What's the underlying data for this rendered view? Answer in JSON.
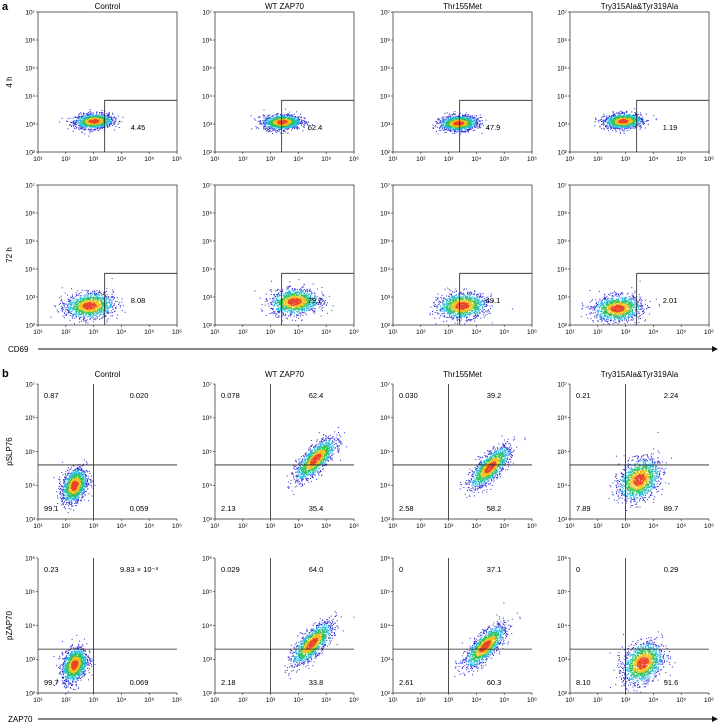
{
  "figure": {
    "panel_labels": [
      "a",
      "b"
    ],
    "a": {
      "columns": [
        "Control",
        "WT ZAP70",
        "Thr155Met",
        "Try315Ala&Tyr319Ala"
      ],
      "rows": [
        "4 h",
        "72 h"
      ],
      "x_axis_label": "CD69",
      "x_ticks": [
        "10¹",
        "10²",
        "10³",
        "10⁴",
        "10⁵",
        "10⁶"
      ],
      "y_ticks": [
        "10²",
        "10³",
        "10⁴",
        "10⁵",
        "10⁶",
        "10⁷"
      ]
    },
    "b": {
      "columns": [
        "Control",
        "WT ZAP70",
        "Thr155Met",
        "Try315Ala&Tyr319Ala"
      ],
      "rows": [
        "pSLP76",
        "pZAP70"
      ],
      "x_axis_label": "ZAP70",
      "x_ticks": [
        "10¹",
        "10²",
        "10³",
        "10⁴",
        "10⁵",
        "10⁶"
      ],
      "y_ticks": [
        "10³",
        "10⁴",
        "10⁵",
        "10⁶",
        "10⁷"
      ],
      "y_ticks_row2": [
        "10²",
        "10³",
        "10⁴",
        "10⁵",
        "10⁶"
      ]
    }
  },
  "chart_data": [
    {
      "panel": "a",
      "type": "scatter",
      "subtype": "flow-cytometry-density",
      "xlabel": "CD69",
      "ylabel": "",
      "x_scale": "log",
      "y_scale": "log",
      "xlim": [
        10,
        1000000
      ],
      "ylim": [
        100,
        10000000
      ],
      "gate": {
        "x_min": 2500,
        "y_max": 7000
      },
      "plots": [
        {
          "row": "4 h",
          "column": "Control",
          "gate_percent": "4.45",
          "population_center": {
            "x": 1000,
            "y": 1300
          }
        },
        {
          "row": "4 h",
          "column": "WT ZAP70",
          "gate_percent": "62.4",
          "population_center": {
            "x": 2500,
            "y": 1200
          }
        },
        {
          "row": "4 h",
          "column": "Thr155Met",
          "gate_percent": "47.9",
          "population_center": {
            "x": 2200,
            "y": 1100
          }
        },
        {
          "row": "4 h",
          "column": "Try315Ala&Tyr319Ala",
          "gate_percent": "1.19",
          "population_center": {
            "x": 800,
            "y": 1300
          }
        },
        {
          "row": "72 h",
          "column": "Control",
          "gate_percent": "8.08",
          "population_center": {
            "x": 700,
            "y": 500
          }
        },
        {
          "row": "72 h",
          "column": "WT ZAP70",
          "gate_percent": "79.2",
          "population_center": {
            "x": 7000,
            "y": 700
          }
        },
        {
          "row": "72 h",
          "column": "Thr155Met",
          "gate_percent": "49.1",
          "population_center": {
            "x": 3000,
            "y": 500
          }
        },
        {
          "row": "72 h",
          "column": "Try315Ala&Tyr319Ala",
          "gate_percent": "2.01",
          "population_center": {
            "x": 500,
            "y": 400
          }
        }
      ]
    },
    {
      "panel": "b",
      "type": "scatter",
      "subtype": "flow-cytometry-quadrant",
      "xlabel": "ZAP70",
      "x_scale": "log",
      "y_scale": "log",
      "xlim": [
        10,
        1000000
      ],
      "rows": [
        {
          "ylabel": "pSLP76",
          "ylim": [
            1000,
            10000000
          ],
          "quadrant_x": 1000,
          "quadrant_y": 40000
        },
        {
          "ylabel": "pZAP70",
          "ylim": [
            100,
            1000000
          ],
          "quadrant_x": 1000,
          "quadrant_y": 2000
        }
      ],
      "plots": [
        {
          "row": "pSLP76",
          "column": "Control",
          "UL": "0.87",
          "UR": "0.020",
          "LL": "99.1",
          "LR": "0.059",
          "population_center": {
            "x": 200,
            "y": 10000
          }
        },
        {
          "row": "pSLP76",
          "column": "WT ZAP70",
          "UL": "0.078",
          "UR": "62.4",
          "LL": "2.13",
          "LR": "35.4",
          "population_center": {
            "x": 40000,
            "y": 60000
          }
        },
        {
          "row": "pSLP76",
          "column": "Thr155Met",
          "UL": "0.030",
          "UR": "39.2",
          "LL": "2.58",
          "LR": "58.2",
          "population_center": {
            "x": 30000,
            "y": 35000
          }
        },
        {
          "row": "pSLP76",
          "column": "Try315Ala&Tyr319Ala",
          "UL": "0.21",
          "UR": "2.24",
          "LL": "7.89",
          "LR": "89.7",
          "population_center": {
            "x": 3000,
            "y": 15000
          }
        },
        {
          "row": "pZAP70",
          "column": "Control",
          "UL": "0.23",
          "UR": "9.83 × 10⁻³",
          "LL": "99.7",
          "LR": "0.069",
          "population_center": {
            "x": 200,
            "y": 700
          }
        },
        {
          "row": "pZAP70",
          "column": "WT ZAP70",
          "UL": "0.029",
          "UR": "64.0",
          "LL": "2.18",
          "LR": "33.8",
          "population_center": {
            "x": 30000,
            "y": 3000
          }
        },
        {
          "row": "pZAP70",
          "column": "Thr155Met",
          "UL": "0",
          "UR": "37.1",
          "LL": "2.61",
          "LR": "60.3",
          "population_center": {
            "x": 20000,
            "y": 2500
          }
        },
        {
          "row": "pZAP70",
          "column": "Try315Ala&Tyr319Ala",
          "UL": "0",
          "UR": "0.29",
          "LL": "8.10",
          "LR": "91.6",
          "population_center": {
            "x": 4000,
            "y": 800
          }
        }
      ]
    }
  ]
}
